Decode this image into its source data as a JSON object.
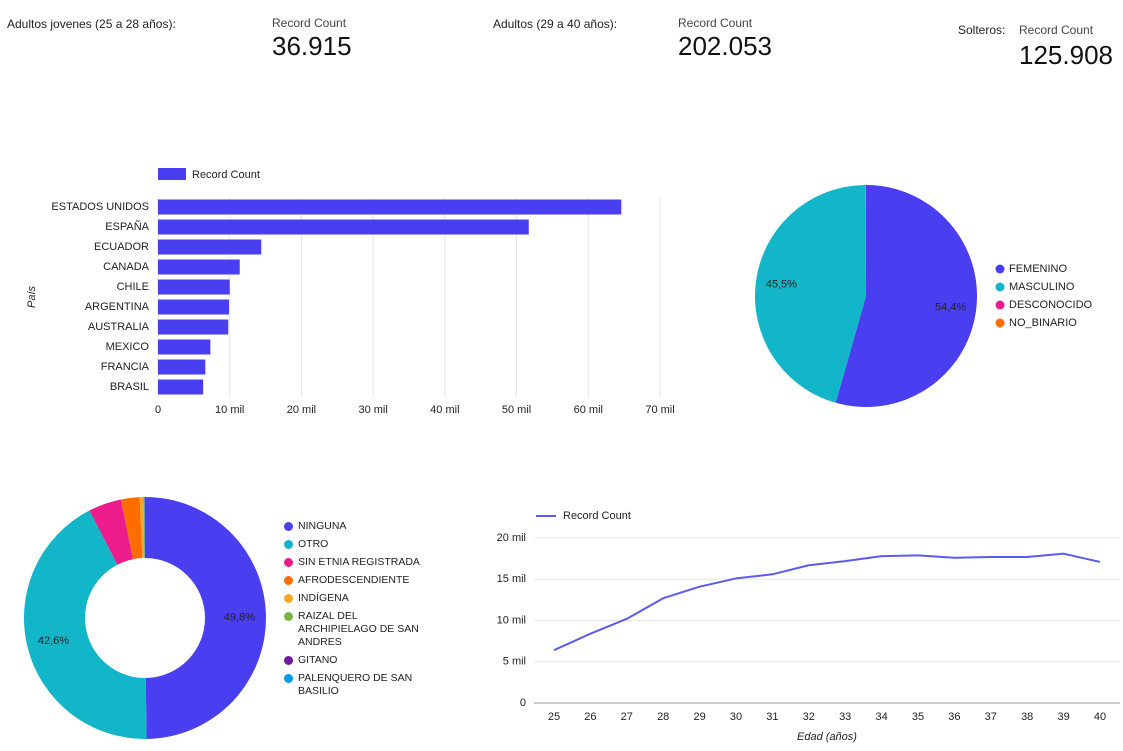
{
  "scorecards": [
    {
      "title": "Adultos jovenes (25 a 28 años):",
      "metric": "Record Count",
      "value": "36.915"
    },
    {
      "title": "Adultos (29 a 40 años):",
      "metric": "Record Count",
      "value": "202.053"
    },
    {
      "title": "Solteros:",
      "metric": "Record Count",
      "value": "125.908"
    }
  ],
  "chart_data": [
    {
      "type": "hbar",
      "ylabel": "País",
      "legend": "Record Count",
      "color": "#4a3ff0",
      "categories": [
        "ESTADOS UNIDOS",
        "ESPAÑA",
        "ECUADOR",
        "CANADA",
        "CHILE",
        "ARGENTINA",
        "AUSTRALIA",
        "MEXICO",
        "FRANCIA",
        "BRASIL"
      ],
      "values": [
        64600,
        51700,
        14400,
        11400,
        10000,
        9900,
        9800,
        7300,
        6600,
        6300
      ],
      "xlim": [
        0,
        70000
      ],
      "xticks": [
        0,
        {
          "value": 10000,
          "label": "10 mil"
        },
        {
          "value": 20000,
          "label": "20 mil"
        },
        {
          "value": 30000,
          "label": "30 mil"
        },
        {
          "value": 40000,
          "label": "40 mil"
        },
        {
          "value": 50000,
          "label": "50 mil"
        },
        {
          "value": 60000,
          "label": "60 mil"
        },
        {
          "value": 70000,
          "label": "70 mil"
        }
      ],
      "grid": true
    },
    {
      "type": "pie",
      "categories": [
        "FEMENINO",
        "MASCULINO",
        "DESCONOCIDO",
        "NO_BINARIO"
      ],
      "values": [
        54.4,
        45.5,
        0.05,
        0.05
      ],
      "value_labels": [
        "54,4%",
        "45,5%",
        null,
        null
      ],
      "colors": [
        "#4a3ff0",
        "#13b5c8",
        "#ec1c8c",
        "#ff6d00"
      ]
    },
    {
      "type": "donut",
      "categories": [
        "NINGUNA",
        "OTRO",
        "SIN ETNIA REGISTRADA",
        "AFRODESCENDIENTE",
        "INDÍGENA",
        "RAIZAL DEL ARCHIPIELAGO DE SAN ANDRES",
        "GITANO",
        "PALENQUERO DE SAN BASILIO"
      ],
      "values": [
        49.8,
        42.6,
        4.4,
        2.5,
        0.5,
        0.1,
        0.05,
        0.05
      ],
      "value_labels": [
        "49,8%",
        "42,6%",
        null,
        null,
        null,
        null,
        null,
        null
      ],
      "colors": [
        "#4a3ff0",
        "#13b5c8",
        "#ec1c8c",
        "#ff6d00",
        "#f9a825",
        "#7cb342",
        "#6a1b9a",
        "#039be5"
      ]
    },
    {
      "type": "line",
      "xlabel": "Edad (años)",
      "x": [
        25,
        26,
        27,
        28,
        29,
        30,
        31,
        32,
        33,
        34,
        35,
        36,
        37,
        38,
        39,
        40
      ],
      "series": [
        {
          "name": "Record Count",
          "color": "#5b5bf0",
          "values": [
            6400,
            8400,
            10200,
            12700,
            14100,
            15100,
            15600,
            16700,
            17200,
            17800,
            17900,
            17600,
            17700,
            17700,
            18100,
            17100
          ]
        }
      ],
      "xlim": [
        25,
        40
      ],
      "xticks": [
        25,
        26,
        27,
        28,
        29,
        30,
        31,
        32,
        33,
        34,
        35,
        36,
        37,
        38,
        39,
        40
      ],
      "ylim": [
        0,
        20000
      ],
      "yticks": [
        0,
        {
          "value": 5000,
          "label": "5 mil"
        },
        {
          "value": 10000,
          "label": "10 mil"
        },
        {
          "value": 15000,
          "label": "15 mil"
        },
        {
          "value": 20000,
          "label": "20 mil"
        }
      ],
      "grid": true
    }
  ]
}
